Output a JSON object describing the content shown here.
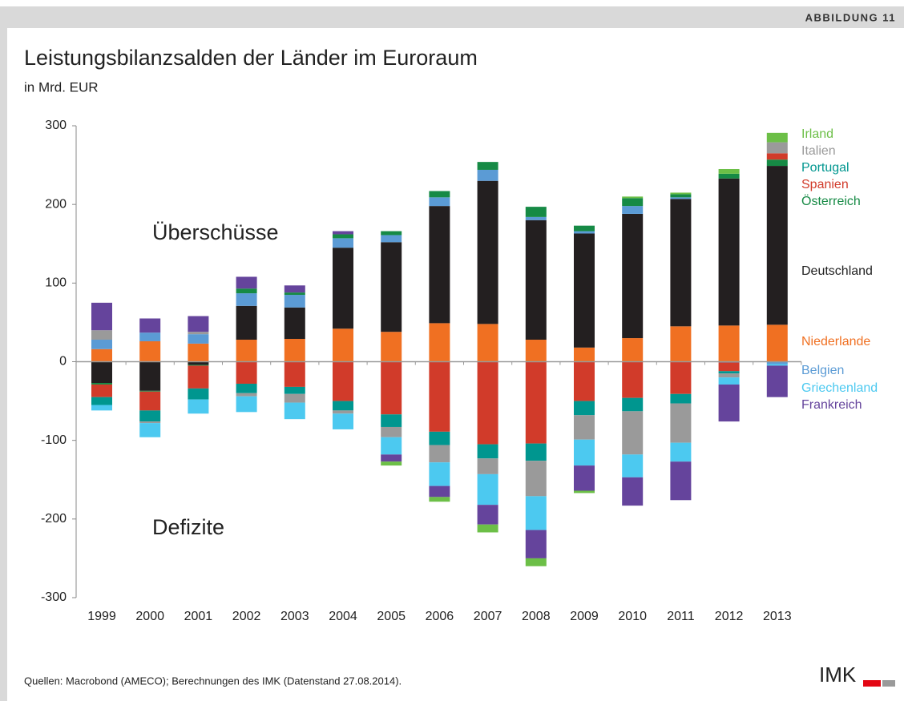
{
  "header": "ABBILDUNG 11",
  "source": "Quellen: Macrobond (AMECO); Berechnungen des IMK (Datenstand 27.08.2014).",
  "logo": "IMK",
  "chart_data": {
    "type": "stacked_bar",
    "title": "Leistungsbilanzsalden der Länder im Euroraum",
    "subtitle": "in Mrd. EUR",
    "annotations": [
      "Überschüsse",
      "Defizite"
    ],
    "categories": [
      "1999",
      "2000",
      "2001",
      "2002",
      "2003",
      "2004",
      "2005",
      "2006",
      "2007",
      "2008",
      "2009",
      "2010",
      "2011",
      "2012",
      "2013"
    ],
    "ylim": [
      -300,
      300
    ],
    "yticks": [
      -300,
      -200,
      -100,
      0,
      100,
      200,
      300
    ],
    "series": [
      {
        "name": "Niederlande",
        "color": "#f07022",
        "values": [
          16,
          26,
          23,
          28,
          29,
          42,
          38,
          49,
          48,
          28,
          18,
          30,
          45,
          46,
          47
        ]
      },
      {
        "name": "Deutschland",
        "color": "#231f20",
        "values": [
          -27,
          -37,
          -4,
          43,
          40,
          103,
          114,
          149,
          182,
          152,
          145,
          158,
          162,
          187,
          202
        ]
      },
      {
        "name": "Belgien",
        "color": "#5b9bd5",
        "values": [
          12,
          11,
          12,
          16,
          16,
          12,
          9,
          11,
          14,
          4,
          3,
          10,
          2,
          -1,
          -3
        ]
      },
      {
        "name": "Österreich",
        "color": "#168a45",
        "values": [
          -2,
          -1,
          -1,
          6,
          3,
          5,
          5,
          8,
          10,
          13,
          7,
          10,
          4,
          6,
          8
        ]
      },
      {
        "name": "Spanien",
        "color": "#d13b2a",
        "values": [
          -16,
          -24,
          -29,
          -28,
          -32,
          -50,
          -67,
          -89,
          -105,
          -104,
          -50,
          -46,
          -41,
          -11,
          8
        ]
      },
      {
        "name": "Portugal",
        "color": "#00968f",
        "values": [
          -10,
          -14,
          -14,
          -12,
          -9,
          -12,
          -16,
          -17,
          -18,
          -22,
          -18,
          -17,
          -12,
          -3,
          0
        ]
      },
      {
        "name": "Italien",
        "color": "#9a9a9a",
        "values": [
          12,
          -2,
          3,
          -4,
          -11,
          -4,
          -13,
          -22,
          -20,
          -45,
          -31,
          -55,
          -50,
          -5,
          14
        ]
      },
      {
        "name": "Griechenland",
        "color": "#4cc9f0",
        "values": [
          -7,
          -18,
          -18,
          -20,
          -21,
          -20,
          -22,
          -30,
          -39,
          -43,
          -33,
          -29,
          -24,
          -9,
          -2
        ]
      },
      {
        "name": "Frankreich",
        "color": "#65449c",
        "values": [
          35,
          18,
          20,
          15,
          9,
          4,
          -9,
          -14,
          -25,
          -36,
          -32,
          -36,
          -49,
          -47,
          -40
        ]
      },
      {
        "name": "Irland",
        "color": "#6cbf47",
        "values": [
          0,
          0,
          0,
          0,
          0,
          0,
          -5,
          -6,
          -10,
          -10,
          -3,
          2,
          2,
          6,
          12
        ]
      }
    ]
  }
}
